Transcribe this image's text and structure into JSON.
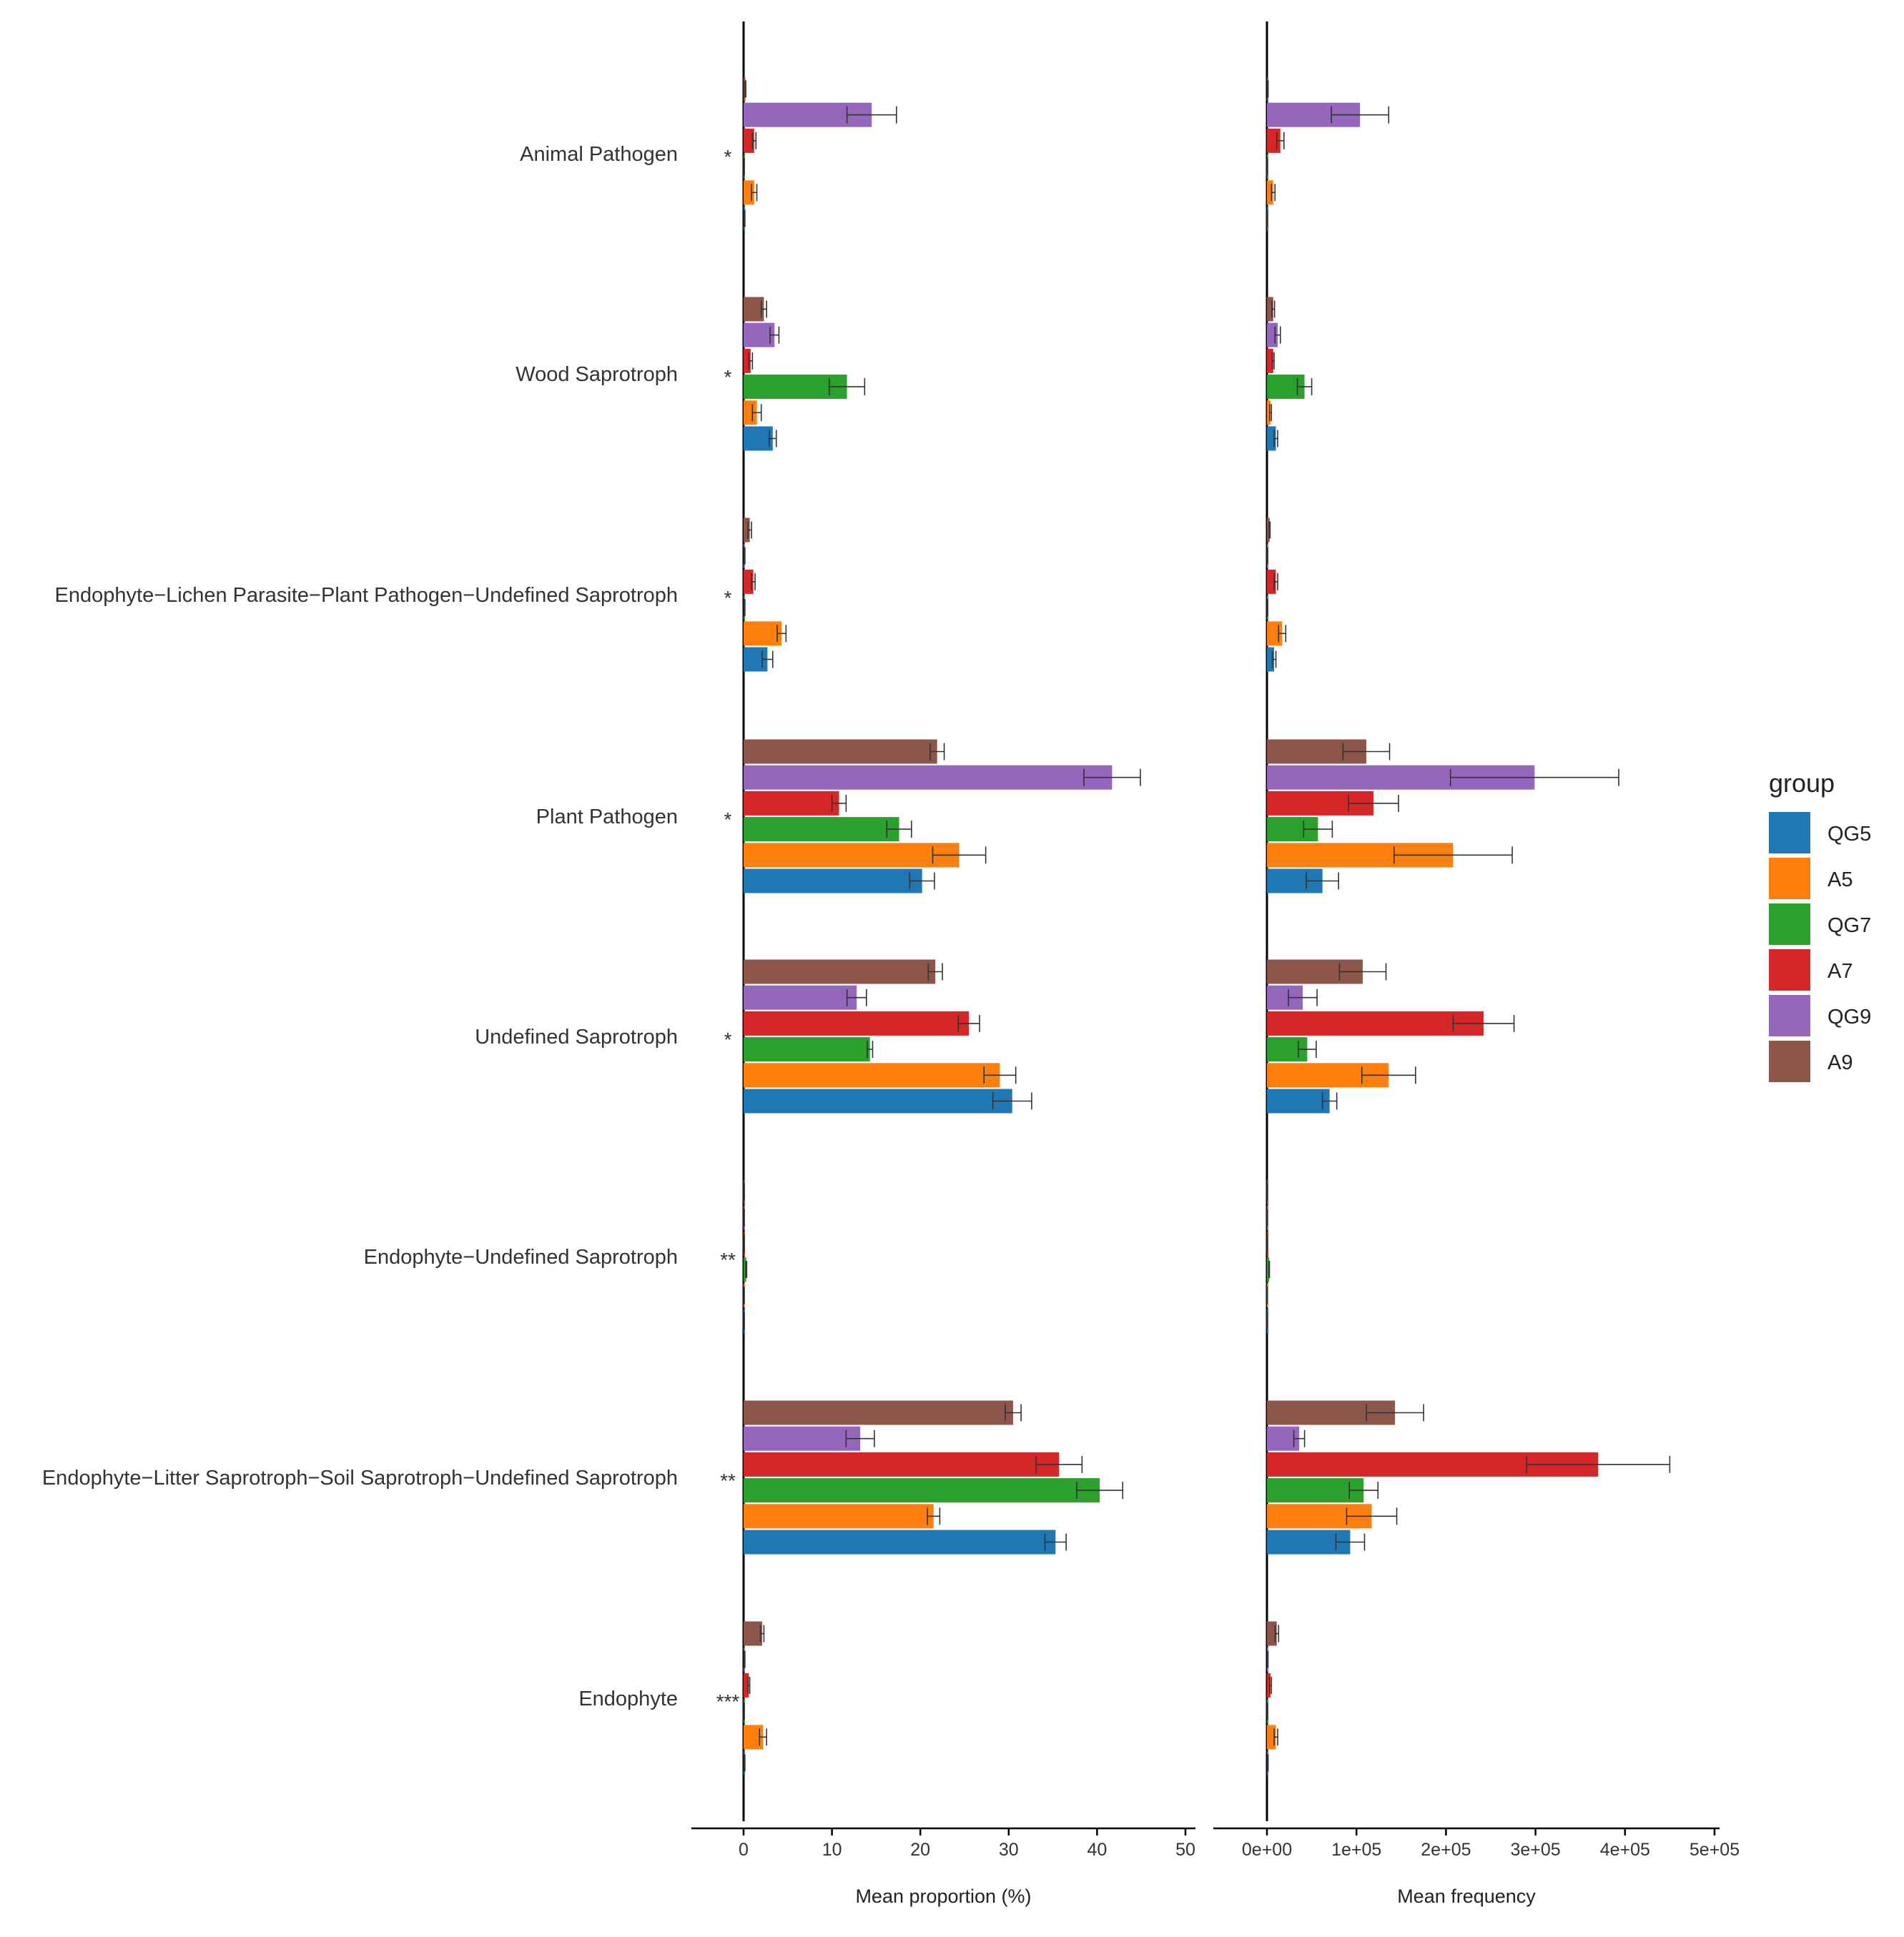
{
  "chart_data": [
    {
      "type": "bar",
      "orientation": "horizontal",
      "panel": "left",
      "xlabel": "Mean proportion (%)",
      "xlim": [
        -6,
        50
      ],
      "xticks": [
        0,
        10,
        20,
        30,
        40,
        50
      ],
      "xtick_labels": [
        "0",
        "10",
        "20",
        "30",
        "40",
        "50"
      ],
      "categories": [
        "Animal Pathogen",
        "Wood Saprotroph",
        "Endophyte−Lichen Parasite−Plant Pathogen−Undefined Saprotroph",
        "Plant Pathogen",
        "Undefined Saprotroph",
        "Endophyte−Undefined Saprotroph",
        "Endophyte−Litter Saprotroph−Soil Saprotroph−Undefined Saprotroph",
        "Endophyte"
      ],
      "significance": [
        "*",
        "*",
        "*",
        "*",
        "*",
        "**",
        "**",
        "***"
      ],
      "series": [
        {
          "name": "QG5",
          "values": [
            0.1,
            3.3,
            2.7,
            20.2,
            30.4,
            0.05,
            35.3,
            0.1
          ],
          "errors": [
            0.05,
            0.4,
            0.6,
            1.4,
            2.2,
            0.02,
            1.2,
            0.05
          ]
        },
        {
          "name": "A5",
          "values": [
            1.2,
            1.5,
            4.3,
            24.4,
            29.0,
            0.05,
            21.5,
            2.2
          ],
          "errors": [
            0.3,
            0.5,
            0.5,
            3.0,
            1.8,
            0.02,
            0.7,
            0.4
          ]
        },
        {
          "name": "QG7",
          "values": [
            0.05,
            11.7,
            0.1,
            17.6,
            14.3,
            0.3,
            40.3,
            0.05
          ],
          "errors": [
            0.02,
            2.0,
            0.05,
            1.4,
            0.3,
            0.05,
            2.6,
            0.02
          ]
        },
        {
          "name": "A7",
          "values": [
            1.2,
            0.8,
            1.1,
            10.8,
            25.5,
            0.05,
            35.7,
            0.6
          ],
          "errors": [
            0.2,
            0.2,
            0.2,
            0.8,
            1.2,
            0.02,
            2.6,
            0.1
          ]
        },
        {
          "name": "QG9",
          "values": [
            14.5,
            3.5,
            0.1,
            41.7,
            12.8,
            0.05,
            13.2,
            0.1
          ],
          "errors": [
            2.8,
            0.5,
            0.05,
            3.2,
            1.1,
            0.02,
            1.6,
            0.05
          ]
        },
        {
          "name": "A9",
          "values": [
            0.2,
            2.3,
            0.7,
            21.9,
            21.7,
            0.05,
            30.5,
            2.1
          ],
          "errors": [
            0.05,
            0.3,
            0.2,
            0.8,
            0.8,
            0.02,
            0.9,
            0.2
          ]
        }
      ]
    },
    {
      "type": "bar",
      "orientation": "horizontal",
      "panel": "right",
      "xlabel": "Mean frequency",
      "xlim": [
        -60000,
        500000
      ],
      "xticks": [
        0,
        100000,
        200000,
        300000,
        400000,
        500000
      ],
      "xtick_labels": [
        "0e+00",
        "1e+05",
        "2e+05",
        "3e+05",
        "4e+05",
        "5e+05"
      ],
      "series": [
        {
          "name": "QG5",
          "values": [
            200,
            10000,
            8000,
            62000,
            70000,
            100,
            93000,
            1000
          ],
          "errors": [
            100,
            2000,
            2000,
            18000,
            8000,
            50,
            16000,
            300
          ]
        },
        {
          "name": "A5",
          "values": [
            7000,
            4000,
            17000,
            208000,
            136000,
            100,
            117000,
            10000
          ],
          "errors": [
            2000,
            1000,
            4000,
            66000,
            30000,
            50,
            28000,
            2000
          ]
        },
        {
          "name": "QG7",
          "values": [
            200,
            42000,
            500,
            57000,
            45000,
            2500,
            108000,
            500
          ],
          "errors": [
            100,
            8000,
            200,
            16000,
            10000,
            300,
            16000,
            200
          ]
        },
        {
          "name": "A7",
          "values": [
            15000,
            7000,
            10000,
            119000,
            242000,
            200,
            370000,
            4000
          ],
          "errors": [
            4000,
            1000,
            2000,
            28000,
            34000,
            50,
            80000,
            1000
          ]
        },
        {
          "name": "QG9",
          "values": [
            104000,
            12000,
            500,
            299000,
            40000,
            200,
            36000,
            1000
          ],
          "errors": [
            32000,
            3000,
            200,
            94000,
            16000,
            50,
            6000,
            200
          ]
        },
        {
          "name": "A9",
          "values": [
            1000,
            7000,
            3000,
            111000,
            107000,
            200,
            143000,
            11000
          ],
          "errors": [
            300,
            1500,
            500,
            26000,
            26000,
            50,
            32000,
            2000
          ]
        }
      ]
    }
  ],
  "legend": {
    "title": "group",
    "items": [
      {
        "name": "QG5",
        "color": "#1F77B4"
      },
      {
        "name": "A5",
        "color": "#FF7F0E"
      },
      {
        "name": "QG7",
        "color": "#2CA02C"
      },
      {
        "name": "A7",
        "color": "#D62728"
      },
      {
        "name": "QG9",
        "color": "#9467BD"
      },
      {
        "name": "A9",
        "color": "#8C564B"
      }
    ]
  }
}
